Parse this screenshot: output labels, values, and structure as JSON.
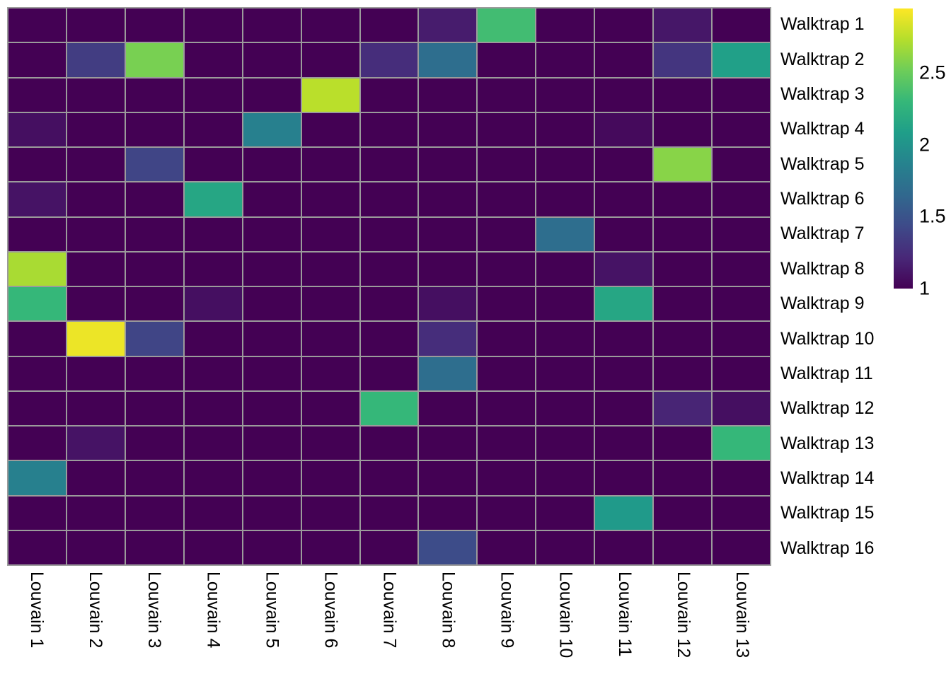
{
  "chart_data": {
    "type": "heatmap",
    "description": "Heatmap comparing Walktrap clusters (rows) against Louvain clusters (columns); cell values shown on a viridis scale",
    "rows": [
      "Walktrap 1",
      "Walktrap 2",
      "Walktrap 3",
      "Walktrap 4",
      "Walktrap 5",
      "Walktrap 6",
      "Walktrap 7",
      "Walktrap 8",
      "Walktrap 9",
      "Walktrap 10",
      "Walktrap 11",
      "Walktrap 12",
      "Walktrap 13",
      "Walktrap 14",
      "Walktrap 15",
      "Walktrap 16"
    ],
    "columns": [
      "Louvain 1",
      "Louvain 2",
      "Louvain 3",
      "Louvain 4",
      "Louvain 5",
      "Louvain 6",
      "Louvain 7",
      "Louvain 8",
      "Louvain 9",
      "Louvain 10",
      "Louvain 11",
      "Louvain 12",
      "Louvain 13"
    ],
    "matrix": [
      [
        1,
        1,
        1,
        1,
        1,
        1,
        1,
        1.15,
        2.35,
        1,
        1,
        1.12,
        1
      ],
      [
        1,
        1.35,
        2.55,
        1,
        1,
        1,
        1.25,
        1.7,
        1,
        1,
        1,
        1.3,
        2.1
      ],
      [
        1,
        1,
        1,
        1,
        1,
        2.75,
        1,
        1,
        1,
        1,
        1,
        1,
        1
      ],
      [
        1.08,
        1,
        1,
        1,
        1.85,
        1,
        1,
        1,
        1,
        1,
        1.05,
        1,
        1
      ],
      [
        1,
        1,
        1.4,
        1,
        1,
        1,
        1,
        1,
        1,
        1,
        1,
        2.6,
        1
      ],
      [
        1.1,
        1,
        1,
        2.15,
        1,
        1,
        1,
        1,
        1,
        1,
        1,
        1,
        1
      ],
      [
        1,
        1,
        1,
        1,
        1,
        1,
        1,
        1,
        1,
        1.7,
        1,
        1,
        1
      ],
      [
        2.7,
        1,
        1,
        1,
        1,
        1,
        1,
        1,
        1,
        1,
        1.1,
        1,
        1
      ],
      [
        2.3,
        1,
        1,
        1.08,
        1,
        1,
        1,
        1.08,
        1,
        1,
        2.15,
        1,
        1
      ],
      [
        1,
        2.9,
        1.4,
        1,
        1,
        1,
        1,
        1.25,
        1,
        1,
        1,
        1,
        1
      ],
      [
        1,
        1,
        1,
        1,
        1,
        1,
        1,
        1.7,
        1,
        1,
        1,
        1,
        1
      ],
      [
        1,
        1,
        1,
        1,
        1,
        1,
        2.3,
        1,
        1,
        1,
        1,
        1.2,
        1.08
      ],
      [
        1,
        1.1,
        1,
        1,
        1,
        1,
        1,
        1,
        1,
        1,
        1,
        1,
        2.3
      ],
      [
        1.85,
        1,
        1,
        1,
        1,
        1,
        1,
        1,
        1,
        1,
        1,
        1,
        1
      ],
      [
        1,
        1,
        1,
        1,
        1,
        1,
        1,
        1,
        1,
        1,
        2.05,
        1,
        1
      ],
      [
        1,
        1,
        1,
        1,
        1,
        1,
        1,
        1.45,
        1,
        1,
        1,
        1,
        1
      ]
    ],
    "vmin": 1,
    "vmax": 2.95,
    "colormap": "viridis",
    "viridis_stops": [
      "#440154",
      "#482878",
      "#3e4a89",
      "#31688e",
      "#26828e",
      "#1f9e89",
      "#35b779",
      "#6dcd59",
      "#b4de2c",
      "#fde725"
    ],
    "colorbar": {
      "position": "right",
      "ticks": [
        {
          "value": 2.5,
          "label": "2.5"
        },
        {
          "value": 2,
          "label": "2"
        },
        {
          "value": 1.5,
          "label": "1.5"
        },
        {
          "value": 1,
          "label": "1"
        }
      ]
    },
    "grid_line_color": "#9b9b9b",
    "base_cell_color": "#440154",
    "legend_position": "right",
    "grid": true
  }
}
